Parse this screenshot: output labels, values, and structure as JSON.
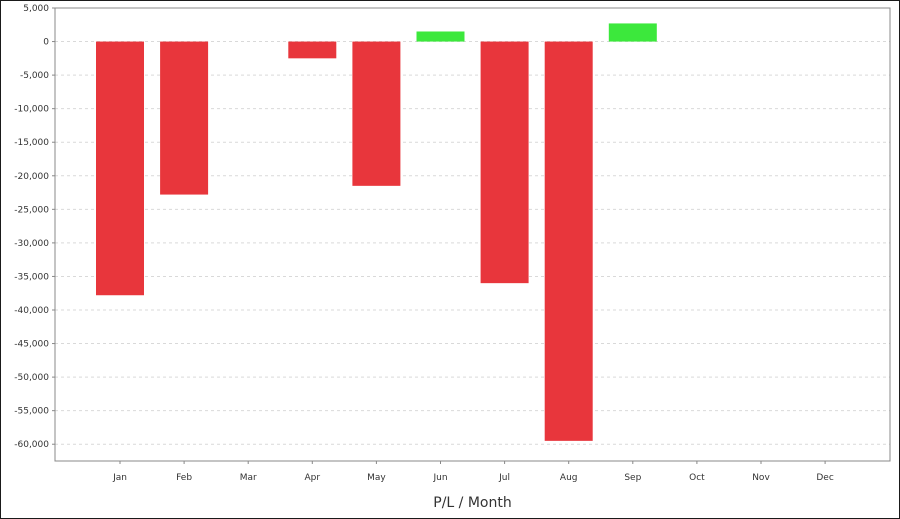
{
  "chart_data": {
    "type": "bar",
    "title": "",
    "xlabel": "P/L / Month",
    "ylabel": "",
    "categories": [
      "Jan",
      "Feb",
      "Mar",
      "Apr",
      "May",
      "Jun",
      "Jul",
      "Aug",
      "Sep",
      "Oct",
      "Nov",
      "Dec"
    ],
    "values": [
      -37800,
      -22800,
      null,
      -2500,
      -21500,
      1500,
      -36000,
      -59500,
      2700,
      null,
      null,
      null
    ],
    "ylim": [
      -62500,
      5000
    ],
    "yticks": [
      5000,
      0,
      -5000,
      -10000,
      -15000,
      -20000,
      -25000,
      -30000,
      -35000,
      -40000,
      -45000,
      -50000,
      -55000,
      -60000
    ],
    "ytick_labels": [
      "5,000",
      "0",
      "-5,000",
      "-10,000",
      "-15,000",
      "-20,000",
      "-25,000",
      "-30,000",
      "-35,000",
      "-40,000",
      "-45,000",
      "-50,000",
      "-55,000",
      "-60,000"
    ],
    "grid": true,
    "colors": {
      "negative": "#e8363c",
      "positive": "#3ce83c",
      "grid": "#d9d9d9",
      "axis": "#888888"
    }
  }
}
